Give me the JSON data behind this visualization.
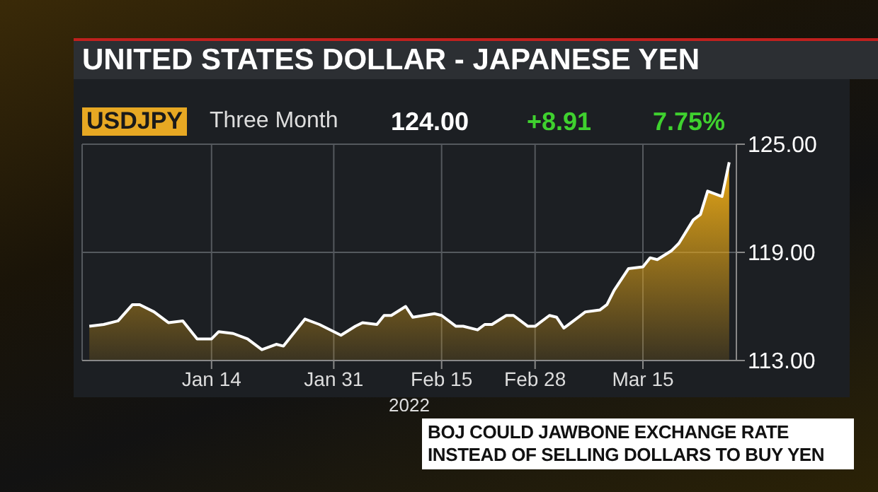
{
  "chart_data": {
    "type": "area",
    "title": "UNITED STATES DOLLAR - JAPANESE YEN",
    "subtitle": "USDJPY",
    "xlabel": "2022",
    "annotations": [
      "Three Month",
      "124.00",
      "+8.91",
      "7.75%",
      "BOJ COULD JAWBONE EXCHANGE RATE INSTEAD OF SELLING DOLLARS TO BUY YEN"
    ],
    "x": [
      "2021-12-28",
      "2021-12-30",
      "2022-01-01",
      "2022-01-03",
      "2022-01-04",
      "2022-01-06",
      "2022-01-08",
      "2022-01-10",
      "2022-01-12",
      "2022-01-14",
      "2022-01-15",
      "2022-01-17",
      "2022-01-19",
      "2022-01-21",
      "2022-01-23",
      "2022-01-24",
      "2022-01-27",
      "2022-01-29",
      "2022-02-01",
      "2022-02-03",
      "2022-02-04",
      "2022-02-06",
      "2022-02-07",
      "2022-02-08",
      "2022-02-10",
      "2022-02-11",
      "2022-02-14",
      "2022-02-15",
      "2022-02-17",
      "2022-02-18",
      "2022-02-20",
      "2022-02-21",
      "2022-02-22",
      "2022-02-24",
      "2022-02-25",
      "2022-02-27",
      "2022-02-28",
      "2022-03-02",
      "2022-03-03",
      "2022-03-04",
      "2022-03-06",
      "2022-03-07",
      "2022-03-09",
      "2022-03-10",
      "2022-03-11",
      "2022-03-13",
      "2022-03-15",
      "2022-03-16",
      "2022-03-17",
      "2022-03-19",
      "2022-03-20",
      "2022-03-22",
      "2022-03-23",
      "2022-03-24",
      "2022-03-26",
      "2022-03-27"
    ],
    "series": [
      {
        "color": "#e8a817",
        "values": [
          114.9,
          115.0,
          115.2,
          116.1,
          116.1,
          115.7,
          115.1,
          115.2,
          114.2,
          114.2,
          114.6,
          114.5,
          114.2,
          113.6,
          113.9,
          113.8,
          115.3,
          115.0,
          114.4,
          114.9,
          115.1,
          115.0,
          115.5,
          115.5,
          116.0,
          115.4,
          115.6,
          115.5,
          114.9,
          114.9,
          114.7,
          115.0,
          115.0,
          115.5,
          115.5,
          114.9,
          114.9,
          115.5,
          115.4,
          114.8,
          115.4,
          115.7,
          115.8,
          116.1,
          116.9,
          118.1,
          118.2,
          118.7,
          118.6,
          119.1,
          119.5,
          120.8,
          121.1,
          122.4,
          122.1,
          124.0
        ]
      }
    ],
    "xlim": [
      "2021-12-27",
      "2022-03-28"
    ],
    "xticks": [
      {
        "value": "2022-01-14",
        "label": "Jan 14"
      },
      {
        "value": "2022-01-31",
        "label": "Jan 31"
      },
      {
        "value": "2022-02-15",
        "label": "Feb 15"
      },
      {
        "value": "2022-02-28",
        "label": "Feb 28"
      },
      {
        "value": "2022-03-15",
        "label": "Mar 15"
      }
    ],
    "ylim": [
      113,
      125
    ],
    "yticks": [
      {
        "value": 113,
        "label": "113.00"
      },
      {
        "value": 119,
        "label": "119.00"
      },
      {
        "value": 125,
        "label": "125.00"
      }
    ],
    "grid": true
  }
}
